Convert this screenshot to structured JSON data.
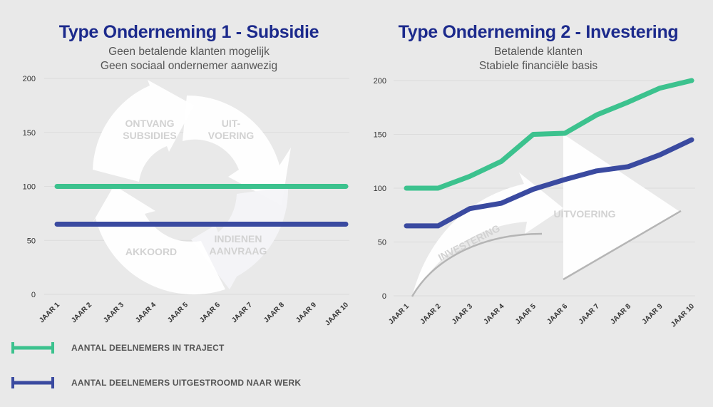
{
  "colors": {
    "background": "#e9e9e9",
    "title": "#1c2a8c",
    "subtitle": "#555555",
    "series1": "#3cc28e",
    "series2": "#3a4aa0",
    "axis_text": "#333333",
    "illustration": "#ffffff",
    "illustration_label": "#d2d2d2",
    "illustration_line": "#b5b5b5"
  },
  "legend": {
    "items": [
      {
        "label": "AANTAL DEELNEMERS IN TRAJECT",
        "color": "#3cc28e"
      },
      {
        "label": "AANTAL DEELNEMERS UITGESTROOMD NAAR WERK",
        "color": "#3a4aa0"
      }
    ]
  },
  "chart_data": [
    {
      "type": "line",
      "title": "Type Onderneming 1 - Subsidie",
      "subtitle": [
        "Geen betalende klanten mogelijk",
        "Geen sociaal ondernemer aanwezig"
      ],
      "x": [
        "JAAR 1",
        "JAAR 2",
        "JAAR 3",
        "JAAR 4",
        "JAAR 5",
        "JAAR 6",
        "JAAR 7",
        "JAAR 8",
        "JAAR 9",
        "JAAR 10"
      ],
      "ylim": [
        0,
        200
      ],
      "yticks": [
        0,
        50,
        100,
        150,
        200
      ],
      "grid": true,
      "series": [
        {
          "name": "AANTAL DEELNEMERS IN TRAJECT",
          "values": [
            100,
            100,
            100,
            100,
            100,
            100,
            100,
            100,
            100,
            100
          ]
        },
        {
          "name": "AANTAL DEELNEMERS UITGESTROOMD NAAR WERK",
          "values": [
            65,
            65,
            65,
            65,
            65,
            65,
            65,
            65,
            65,
            65
          ]
        }
      ],
      "illustration": {
        "kind": "cycle",
        "labels": [
          {
            "lines": [
              "ONTVANG",
              "SUBSIDIES"
            ]
          },
          {
            "lines": [
              "UIT-",
              "VOERING"
            ]
          },
          {
            "lines": [
              "INDIENEN",
              "AANVRAAG"
            ]
          },
          {
            "lines": [
              "AKKOORD"
            ]
          }
        ]
      }
    },
    {
      "type": "line",
      "title": "Type Onderneming 2 - Investering",
      "subtitle": [
        "Betalende klanten",
        "Stabiele financiële basis"
      ],
      "x": [
        "JAAR 1",
        "JAAR 2",
        "JAAR 3",
        "JAAR 4",
        "JAAR 5",
        "JAAR 6",
        "JAAR 7",
        "JAAR 8",
        "JAAR 9",
        "JAAR 10"
      ],
      "ylim": [
        0,
        200
      ],
      "yticks": [
        0,
        50,
        100,
        150,
        200
      ],
      "grid": true,
      "series": [
        {
          "name": "AANTAL DEELNEMERS IN TRAJECT",
          "values": [
            100,
            100,
            111,
            125,
            150,
            151,
            168,
            180,
            193,
            200
          ]
        },
        {
          "name": "AANTAL DEELNEMERS UITGESTROOMD NAAR WERK",
          "values": [
            65,
            65,
            81,
            86,
            99,
            108,
            116,
            120,
            131,
            145
          ]
        }
      ],
      "illustration": {
        "kind": "growth",
        "labels": [
          {
            "lines": [
              "INVESTERING"
            ]
          },
          {
            "lines": [
              "UITVOERING"
            ]
          }
        ]
      }
    }
  ]
}
